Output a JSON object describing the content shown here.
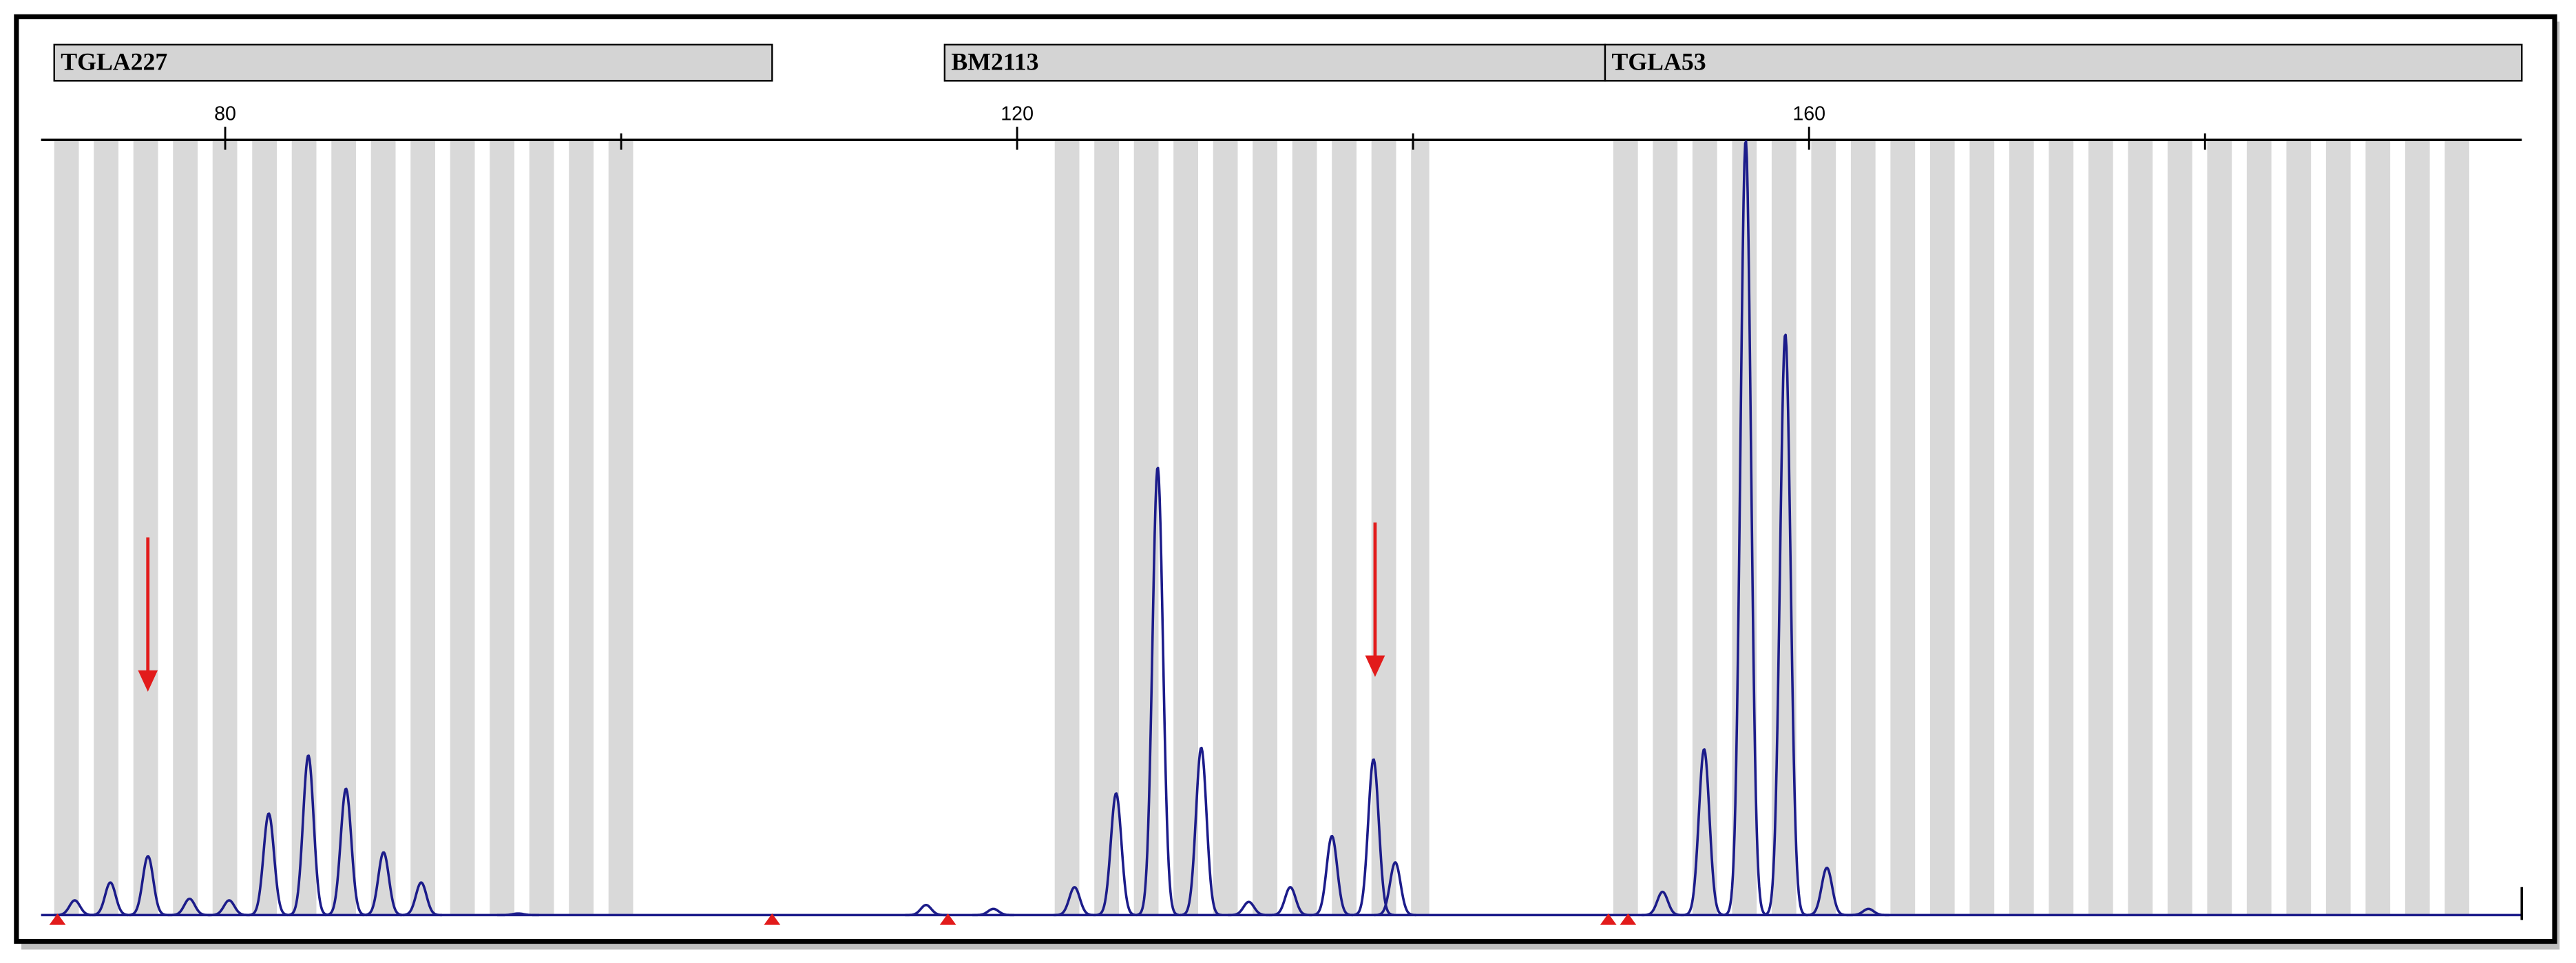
{
  "chart_data": {
    "type": "electropherogram",
    "markers": [
      "TGLA227",
      "BM2113",
      "TGLA53"
    ],
    "xlim": [
      70.7,
      196
    ],
    "xticks": [
      80,
      120,
      160
    ],
    "minor_xticks": [
      100,
      140,
      180
    ],
    "ylim": [
      0,
      100
    ],
    "color": "#1c1c8a",
    "peaks": {
      "x": [
        72.4,
        74.2,
        76.1,
        78.2,
        80.2,
        82.2,
        84.2,
        86.1,
        88.0,
        89.9,
        94.8,
        115.4,
        118.8,
        122.9,
        125.0,
        127.1,
        129.3,
        131.7,
        133.8,
        135.9,
        138.0,
        139.1,
        152.6,
        154.7,
        156.8,
        158.8,
        160.9,
        163.0
      ],
      "values": [
        1.9,
        4.2,
        7.6,
        2.1,
        1.9,
        13.1,
        20.6,
        16.3,
        8.1,
        4.2,
        0.2,
        1.3,
        0.8,
        3.6,
        15.7,
        57.8,
        21.6,
        1.7,
        3.6,
        10.2,
        20.1,
        6.8,
        3.0,
        21.4,
        100,
        75,
        6.1,
        0.8
      ]
    }
  }
}
